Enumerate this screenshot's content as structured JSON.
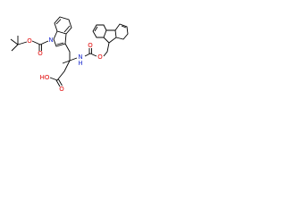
{
  "atoms": [
    {
      "label": "O"
    },
    {
      "label": "O"
    },
    {
      "label": "N"
    },
    {
      "label": "N"
    },
    {
      "label": "H"
    },
    {
      "label": "O"
    },
    {
      "label": "O"
    },
    {
      "label": "HO"
    },
    {
      "label": "O"
    }
  ]
}
